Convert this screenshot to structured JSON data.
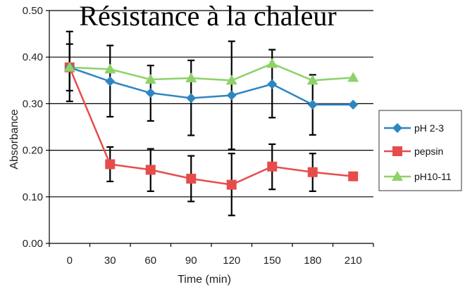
{
  "chart_data": {
    "type": "line",
    "title": "Résistance à la chaleur",
    "xlabel": "Time (min)",
    "ylabel": "Absorbance",
    "x": [
      0,
      30,
      60,
      90,
      120,
      150,
      180,
      210
    ],
    "xtick_labels": [
      "0",
      "30",
      "60",
      "90",
      "120",
      "150",
      "180",
      "210"
    ],
    "ylim": [
      0,
      0.5
    ],
    "ytick_labels": [
      "0.00",
      "0.10",
      "0.20",
      "0.30",
      "0.40",
      "0.50"
    ],
    "ytick_values": [
      0,
      0.1,
      0.2,
      0.3,
      0.4,
      0.5
    ],
    "grid": true,
    "legend_position": "right",
    "series": [
      {
        "name": "pH 2-3",
        "color": "#2e86c1",
        "marker": "diamond",
        "values": [
          0.378,
          0.348,
          0.323,
          0.312,
          0.318,
          0.342,
          0.298,
          0.298
        ],
        "err_low": [
          0.328,
          0.272,
          0.263,
          0.232,
          0.202,
          0.27,
          0.233,
          null
        ],
        "err_high": [
          0.428,
          0.425,
          0.382,
          0.393,
          0.434,
          0.416,
          0.362,
          null
        ]
      },
      {
        "name": "pepsin",
        "color": "#e74c4c",
        "marker": "square",
        "values": [
          0.378,
          0.17,
          0.158,
          0.139,
          0.126,
          0.165,
          0.153,
          0.144
        ],
        "err_low": [
          0.305,
          0.133,
          0.112,
          0.09,
          0.06,
          0.116,
          0.112,
          null
        ],
        "err_high": [
          0.455,
          0.207,
          0.203,
          0.188,
          0.193,
          0.213,
          0.193,
          null
        ]
      },
      {
        "name": "pH10-11",
        "color": "#8fd16a",
        "marker": "triangle",
        "values": [
          0.378,
          0.374,
          0.352,
          0.355,
          0.35,
          0.386,
          0.35,
          0.356
        ],
        "err_low": [
          null,
          null,
          null,
          null,
          null,
          null,
          null,
          null
        ],
        "err_high": [
          null,
          null,
          null,
          null,
          null,
          null,
          null,
          null
        ]
      }
    ]
  }
}
